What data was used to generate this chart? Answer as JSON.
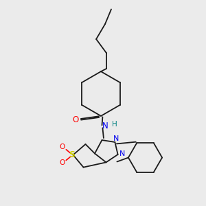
{
  "bg_color": "#ebebeb",
  "bond_color": "#1a1a1a",
  "atom_colors": {
    "O": "#ff0000",
    "N": "#0000ee",
    "S": "#cccc00",
    "H": "#008080",
    "C": "#1a1a1a"
  }
}
